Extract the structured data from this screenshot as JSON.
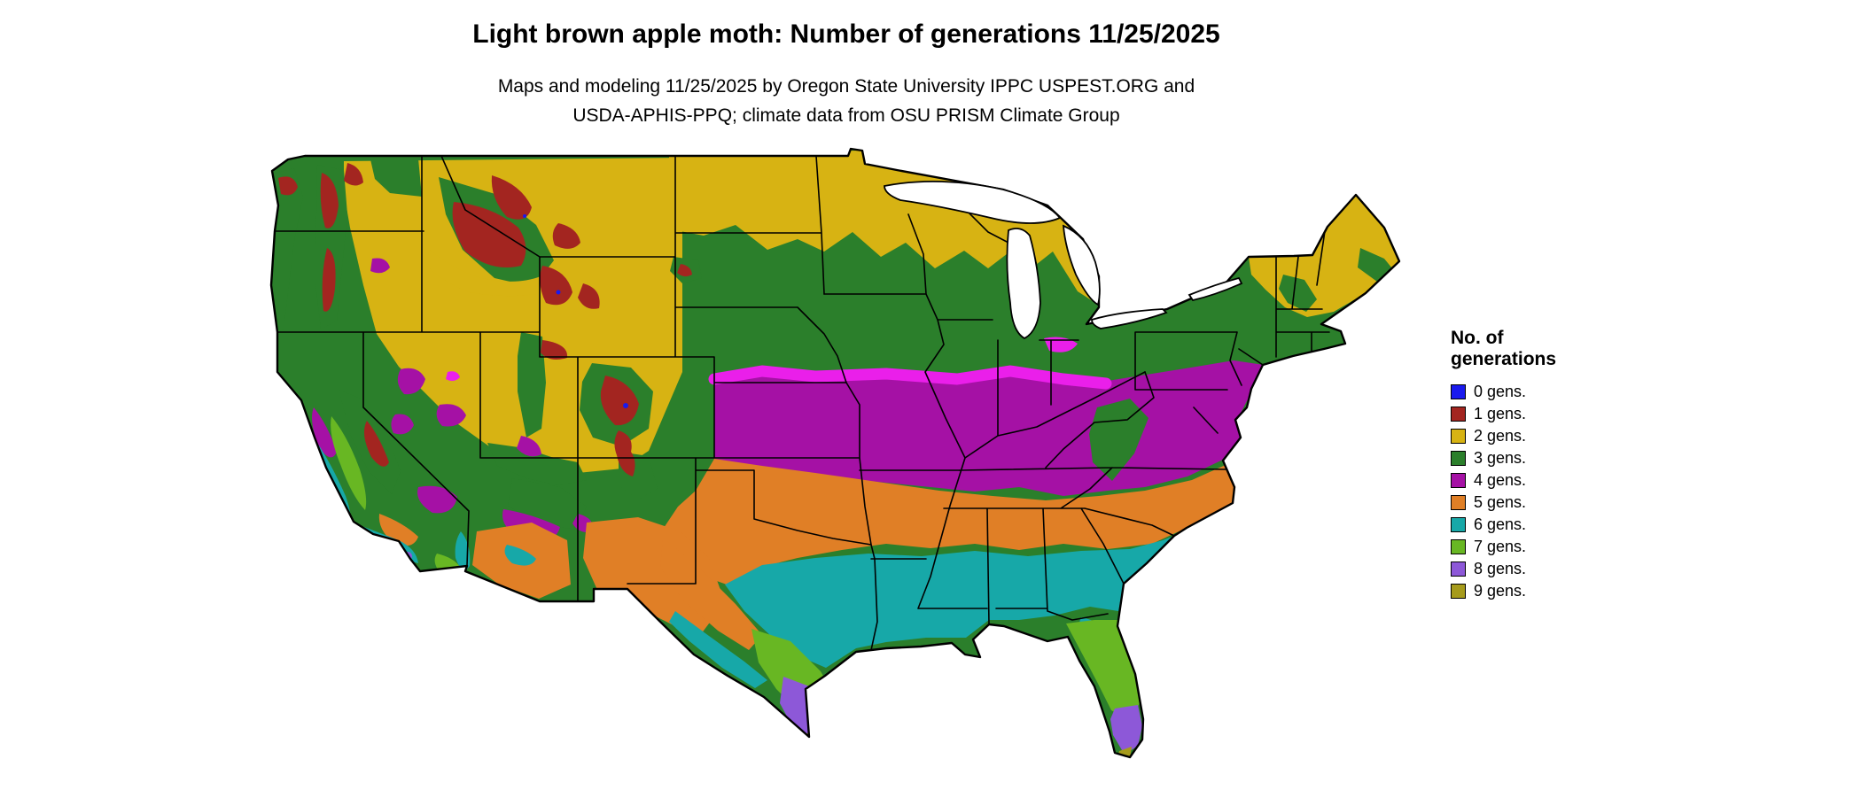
{
  "header": {
    "title": "Light brown apple moth: Number of generations 11/25/2025",
    "subtitle_line1": "Maps and modeling 11/25/2025 by Oregon State University IPPC USPEST.ORG and",
    "subtitle_line2": "USDA-APHIS-PPQ; climate data from OSU PRISM Climate Group"
  },
  "map": {
    "region": "Continental United States",
    "model_date": "11/25/2025"
  },
  "legend": {
    "title_line1": "No. of",
    "title_line2": "generations",
    "items": [
      {
        "label": "0 gens.",
        "color_key": "gens0"
      },
      {
        "label": "1 gens.",
        "color_key": "gens1"
      },
      {
        "label": "2 gens.",
        "color_key": "gens2"
      },
      {
        "label": "3 gens.",
        "color_key": "gens3"
      },
      {
        "label": "4 gens.",
        "color_key": "gens4"
      },
      {
        "label": "5 gens.",
        "color_key": "gens5"
      },
      {
        "label": "6 gens.",
        "color_key": "gens6"
      },
      {
        "label": "7 gens.",
        "color_key": "gens7"
      },
      {
        "label": "8 gens.",
        "color_key": "gens8"
      },
      {
        "label": "9 gens.",
        "color_key": "gens9"
      }
    ]
  },
  "colors": {
    "gens0": "#1a1aee",
    "gens1": "#a32520",
    "gens2": "#d7b313",
    "gens3": "#2b7f2b",
    "gens4": "#a511a5",
    "gens4_hot": "#ea1fea",
    "gens5": "#e07f26",
    "gens6": "#17a8a8",
    "gens7": "#68b723",
    "gens8": "#8d58d8",
    "gens9": "#a69b1c",
    "outline": "#000000",
    "water": "#ffffff",
    "background": "#ffffff"
  }
}
